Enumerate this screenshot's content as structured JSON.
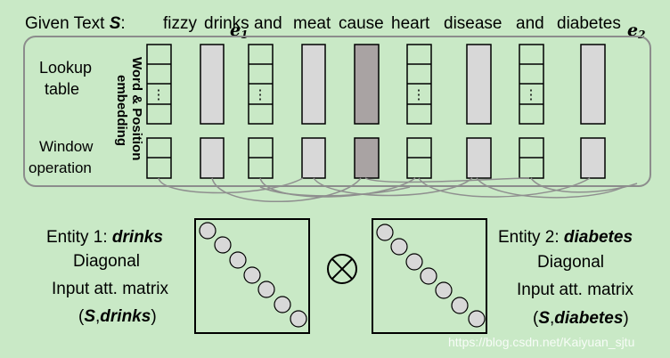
{
  "given_text": {
    "prefix": "Given Text ",
    "symbol": "S",
    "colon": ":",
    "words": [
      "fizzy",
      "drinks",
      "and",
      "meat",
      "cause",
      "heart",
      "disease",
      "and",
      "diabetes"
    ],
    "entity1_marker": "e",
    "entity1_sub": "1",
    "entity2_marker": "e",
    "entity2_sub": "2"
  },
  "panel": {
    "lookup_line1": "Lookup",
    "lookup_line2": "table",
    "window_line1": "Window",
    "window_line2": "operation",
    "vertical_line1": "Word & Position",
    "vertical_line2": "embedding"
  },
  "entity1": {
    "label_prefix": "Entity 1: ",
    "name": "drinks",
    "line2": "Diagonal",
    "line3": "Input att. matrix",
    "paren_open": "(",
    "symbol": "S",
    "comma": ",",
    "arg": "drinks",
    "paren_close": ")"
  },
  "entity2": {
    "label_prefix": "Entity 2: ",
    "name": "diabetes",
    "line2": "Diagonal",
    "line3": "Input att. matrix",
    "paren_open": "(",
    "symbol": "S",
    "comma": ",",
    "arg": "diabetes",
    "paren_close": ")"
  },
  "operator_symbol": "⊗",
  "ellipsis": "⋮",
  "watermark": "https://blog.csdn.net/Kaiyuan_sjtu",
  "colors": {
    "background": "#c9e9c6",
    "light_column": "#d8d8d8",
    "dark_column": "#a9a3a3",
    "panel_border": "#8c8c8c",
    "connector": "#8f8f8f"
  }
}
